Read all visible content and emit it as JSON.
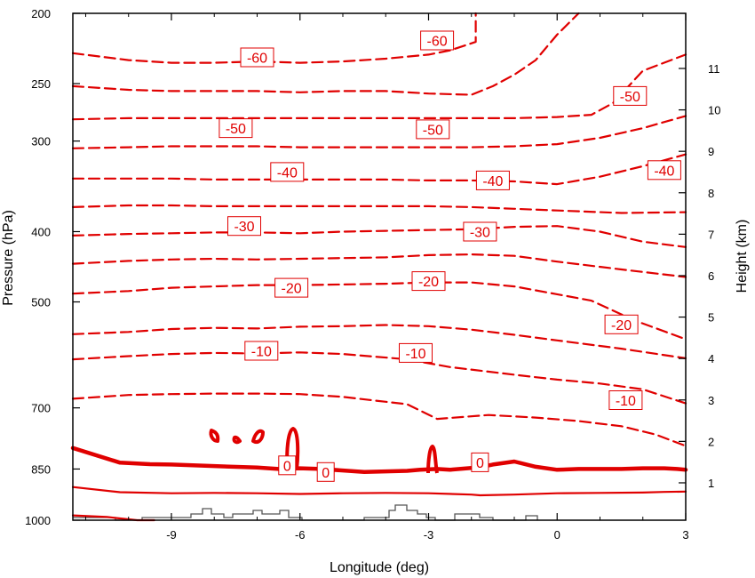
{
  "chart_data": {
    "type": "contour",
    "xlabel": "Longitude (deg)",
    "ylabel_left": "Pressure (hPa)",
    "ylabel_right": "Height (km)",
    "xlim": [
      -11.3,
      3
    ],
    "x_ticks": [
      -9,
      -6,
      -3,
      0,
      3
    ],
    "x_tick_labels": [
      "-9",
      "-6",
      "-3",
      "0",
      "3"
    ],
    "y_pressure_range": [
      1000,
      200
    ],
    "y_scale": "log-pressure",
    "y_ticks": [
      200,
      250,
      300,
      400,
      500,
      700,
      850,
      1000
    ],
    "y_tick_labels": [
      "200",
      "250",
      "300",
      "400",
      "500",
      "700",
      "850",
      "1000"
    ],
    "height_ticks_km": [
      1,
      2,
      3,
      4,
      5,
      6,
      7,
      8,
      9,
      10,
      11
    ],
    "height_tick_labels": [
      "1",
      "2",
      "3",
      "4",
      "5",
      "6",
      "7",
      "8",
      "9",
      "10",
      "11"
    ],
    "contour_color": "#e00000",
    "terrain_color": "#555555",
    "contour_interval": 5,
    "contours": [
      {
        "level": 0,
        "style": "solid-thick",
        "pressures": [
          795,
          833,
          837,
          838,
          840,
          846,
          850,
          848,
          850,
          858,
          855,
          852,
          850,
          852,
          847,
          845,
          838,
          830,
          844,
          852,
          850,
          850,
          850,
          848,
          848,
          850,
          852
        ],
        "x": [
          -11.3,
          -10.2,
          -9.5,
          -9.0,
          -8.5,
          -7.0,
          -6.5,
          -6.0,
          -5.5,
          -4.5,
          -3.5,
          -3.2,
          -2.8,
          -2.5,
          -2.0,
          -1.8,
          -1.5,
          -1.0,
          -0.5,
          0.0,
          0.5,
          1.0,
          1.5,
          2.0,
          2.5,
          2.8,
          3.0
        ]
      },
      {
        "level": 5,
        "style": "solid",
        "pressures": [
          900,
          915,
          918,
          917,
          918,
          920,
          918,
          917,
          918,
          922,
          924,
          922,
          918,
          917,
          916,
          914,
          913
        ],
        "x": [
          -11.3,
          -10.2,
          -9.0,
          -8.0,
          -7.0,
          -6.0,
          -5.0,
          -4.0,
          -3.0,
          -2.0,
          -1.8,
          -1.0,
          0.0,
          1.0,
          2.0,
          2.5,
          3.0
        ]
      },
      {
        "level": 10,
        "style": "solid",
        "pressures": [
          985,
          990,
          1000,
          1000
        ],
        "x": [
          -11.3,
          -10.5,
          -9.8,
          -9.4
        ]
      },
      {
        "level": -5,
        "style": "dashed",
        "pressures": [
          680,
          672,
          670,
          669,
          669,
          670,
          676,
          692,
          725,
          716,
          722,
          730,
          742,
          762,
          790
        ],
        "x": [
          -11.3,
          -10.0,
          -9.0,
          -8.0,
          -7.0,
          -6.0,
          -5.0,
          -3.5,
          -2.8,
          -1.6,
          -0.5,
          0.5,
          1.5,
          2.3,
          3.0
        ]
      },
      {
        "level": -10,
        "style": "dashed",
        "pressures": [
          600,
          594,
          590,
          588,
          589,
          587,
          590,
          600,
          615,
          630,
          640,
          648,
          660,
          690
        ],
        "x": [
          -11.3,
          -10.0,
          -9.0,
          -8.0,
          -7.0,
          -6.0,
          -5.0,
          -3.5,
          -2.5,
          -1.0,
          0.0,
          1.0,
          2.0,
          3.0
        ]
      },
      {
        "level": -15,
        "style": "dashed",
        "pressures": [
          554,
          550,
          545,
          543,
          544,
          541,
          540,
          538,
          540,
          546,
          555,
          565,
          580,
          598
        ],
        "x": [
          -11.3,
          -10.0,
          -9.0,
          -8.0,
          -7.0,
          -6.0,
          -5.0,
          -4.0,
          -3.0,
          -2.0,
          -1.0,
          0.0,
          1.5,
          3.0
        ]
      },
      {
        "level": -20,
        "style": "dashed",
        "pressures": [
          487,
          483,
          478,
          476,
          474,
          474,
          473,
          472,
          470,
          470,
          476,
          488,
          498,
          530,
          563
        ],
        "x": [
          -11.3,
          -10.0,
          -9.0,
          -8.0,
          -7.0,
          -6.0,
          -5.0,
          -4.0,
          -3.0,
          -2.0,
          -1.0,
          0.0,
          0.8,
          1.8,
          3.0
        ]
      },
      {
        "level": -25,
        "style": "dashed",
        "pressures": [
          443,
          439,
          437,
          436,
          437,
          436,
          435,
          434,
          431,
          430,
          432,
          440,
          451,
          462
        ],
        "x": [
          -11.3,
          -10.0,
          -9.0,
          -8.0,
          -7.0,
          -6.0,
          -5.0,
          -4.0,
          -3.0,
          -2.0,
          -1.0,
          0.0,
          1.5,
          3.0
        ]
      },
      {
        "level": -30,
        "style": "dashed",
        "pressures": [
          405,
          403,
          402,
          401,
          401,
          402,
          400,
          399,
          398,
          397,
          394,
          393,
          400,
          413,
          420
        ],
        "x": [
          -11.3,
          -10.0,
          -9.0,
          -8.0,
          -7.0,
          -6.0,
          -5.0,
          -4.0,
          -3.0,
          -2.0,
          -1.0,
          0.0,
          1.0,
          2.0,
          3.0
        ]
      },
      {
        "level": -35,
        "style": "dashed",
        "pressures": [
          370,
          368,
          368,
          369,
          369,
          369,
          369,
          369,
          369,
          370,
          372,
          374,
          377,
          376
        ],
        "x": [
          -11.3,
          -10.0,
          -9.0,
          -8.0,
          -7.0,
          -6.0,
          -5.0,
          -4.0,
          -3.0,
          -2.0,
          -1.0,
          0.0,
          1.5,
          3.0
        ]
      },
      {
        "level": -40,
        "style": "dashed",
        "pressures": [
          338,
          338,
          338,
          339,
          339,
          339,
          339,
          339,
          340,
          340,
          341,
          344,
          336,
          325,
          313
        ],
        "x": [
          -11.3,
          -10.0,
          -9.0,
          -8.0,
          -7.0,
          -6.0,
          -5.0,
          -4.0,
          -3.0,
          -2.0,
          -1.0,
          0.0,
          1.0,
          2.0,
          3.0
        ]
      },
      {
        "level": -45,
        "style": "dashed",
        "pressures": [
          307,
          306,
          305,
          305,
          305,
          306,
          306,
          306,
          306,
          306,
          305,
          303,
          297,
          288,
          277
        ],
        "x": [
          -11.3,
          -10.0,
          -9.0,
          -8.0,
          -7.0,
          -6.0,
          -5.0,
          -4.0,
          -3.0,
          -2.0,
          -1.0,
          0.0,
          1.0,
          2.0,
          3.0
        ]
      },
      {
        "level": -50,
        "style": "dashed",
        "pressures": [
          280,
          279,
          279,
          279,
          279,
          279,
          279,
          279,
          279,
          279,
          279,
          278,
          276,
          266,
          240,
          228
        ],
        "x": [
          -11.3,
          -10.0,
          -9.0,
          -8.0,
          -7.0,
          -6.0,
          -5.0,
          -4.0,
          -3.0,
          -2.0,
          -1.0,
          0.0,
          0.8,
          1.3,
          2.0,
          3.0
        ]
      },
      {
        "level": -55,
        "style": "dashed",
        "pressures": [
          252,
          255,
          256,
          256,
          256,
          257,
          256,
          256,
          258,
          259,
          252,
          243,
          232,
          214,
          200
        ],
        "x": [
          -11.3,
          -10.0,
          -9.0,
          -8.0,
          -7.0,
          -6.0,
          -5.0,
          -4.0,
          -3.0,
          -2.0,
          -1.5,
          -1.0,
          -0.5,
          0.0,
          0.5
        ]
      },
      {
        "level": -60,
        "style": "dashed",
        "pressures": [
          227,
          232,
          234,
          234,
          233,
          234,
          233,
          231,
          228,
          225,
          219,
          200
        ],
        "x": [
          -11.3,
          -10.0,
          -9.0,
          -8.0,
          -7.0,
          -6.0,
          -5.0,
          -4.0,
          -3.0,
          -2.5,
          -1.9,
          -1.9
        ]
      }
    ],
    "contour_labels": [
      {
        "text": "-60",
        "x": -7.0,
        "p": 230
      },
      {
        "text": "-60",
        "x": -2.8,
        "p": 218
      },
      {
        "text": "-50",
        "x": 1.7,
        "p": 260
      },
      {
        "text": "-50",
        "x": -7.5,
        "p": 288
      },
      {
        "text": "-50",
        "x": -2.9,
        "p": 289
      },
      {
        "text": "-40",
        "x": -6.3,
        "p": 331
      },
      {
        "text": "-40",
        "x": -1.5,
        "p": 340
      },
      {
        "text": "-40",
        "x": 2.5,
        "p": 329
      },
      {
        "text": "-30",
        "x": -7.3,
        "p": 393
      },
      {
        "text": "-30",
        "x": -1.8,
        "p": 400
      },
      {
        "text": "-20",
        "x": -6.2,
        "p": 478
      },
      {
        "text": "-20",
        "x": -3.0,
        "p": 468
      },
      {
        "text": "-20",
        "x": 1.5,
        "p": 537
      },
      {
        "text": "-10",
        "x": -6.9,
        "p": 584
      },
      {
        "text": "-10",
        "x": -3.3,
        "p": 588
      },
      {
        "text": "-10",
        "x": 1.6,
        "p": 683
      },
      {
        "text": "0",
        "x": -6.3,
        "p": 840
      },
      {
        "text": "0",
        "x": -5.4,
        "p": 858
      },
      {
        "text": "0",
        "x": -1.8,
        "p": 832
      }
    ]
  }
}
